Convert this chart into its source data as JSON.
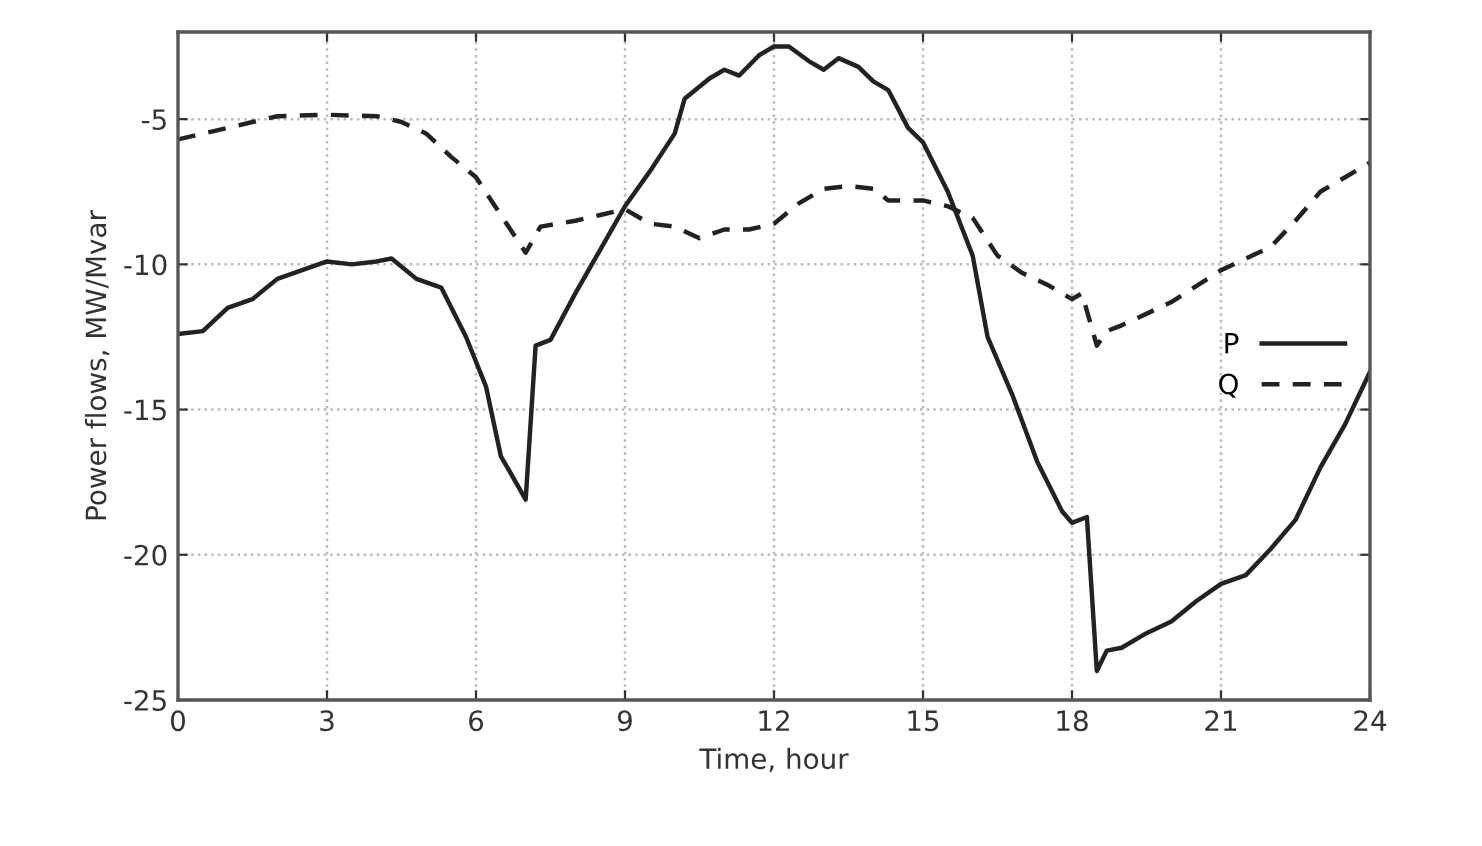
{
  "chart_data": {
    "type": "line",
    "xlabel": "Time, hour",
    "ylabel": "Power flows, MW/Mvar",
    "xlim": [
      0,
      24
    ],
    "xticks": [
      0,
      3,
      6,
      9,
      12,
      15,
      18,
      21,
      24
    ],
    "ylim": [
      -25,
      -2
    ],
    "yticks": [
      -25,
      -20,
      -15,
      -10,
      -5
    ],
    "grid": true,
    "legend": "right",
    "series": [
      {
        "name": "P",
        "color": "#222222",
        "line_style": "solid",
        "x": [
          0,
          0.5,
          1,
          1.5,
          2,
          2.5,
          3,
          3.5,
          4,
          4.3,
          4.8,
          5.3,
          5.8,
          6.2,
          6.5,
          7.0,
          7.2,
          7.5,
          8,
          8.5,
          9,
          9.5,
          10,
          10.2,
          10.7,
          11,
          11.3,
          11.7,
          12,
          12.3,
          12.7,
          13,
          13.3,
          13.7,
          14,
          14.3,
          14.7,
          15,
          15.5,
          16,
          16.3,
          16.8,
          17.3,
          17.8,
          18,
          18.3,
          18.5,
          18.7,
          19,
          19.5,
          20,
          20.5,
          21,
          21.5,
          22,
          22.5,
          23,
          23.5,
          24
        ],
        "values": [
          -12.4,
          -12.3,
          -11.5,
          -11.2,
          -10.5,
          -10.2,
          -9.9,
          -10.0,
          -9.9,
          -9.8,
          -10.5,
          -10.8,
          -12.5,
          -14.2,
          -16.6,
          -18.1,
          -12.8,
          -12.6,
          -11.0,
          -9.5,
          -8.0,
          -6.8,
          -5.5,
          -4.3,
          -3.6,
          -3.3,
          -3.5,
          -2.8,
          -2.5,
          -2.5,
          -3.0,
          -3.3,
          -2.9,
          -3.2,
          -3.7,
          -4.0,
          -5.3,
          -5.8,
          -7.5,
          -9.7,
          -12.5,
          -14.5,
          -16.8,
          -18.5,
          -18.9,
          -18.7,
          -24.0,
          -23.3,
          -23.2,
          -22.7,
          -22.3,
          -21.6,
          -21.0,
          -20.7,
          -19.8,
          -18.8,
          -17.0,
          -15.5,
          -13.7
        ]
      },
      {
        "name": "Q",
        "color": "#222222",
        "line_style": "dashed",
        "x": [
          0,
          0.5,
          1,
          1.5,
          2,
          3,
          4,
          4.5,
          5,
          5.5,
          6,
          6.5,
          7,
          7.3,
          8,
          8.5,
          9,
          9.5,
          10,
          10.5,
          11,
          11.5,
          12,
          12.5,
          13,
          13.5,
          14,
          14.3,
          15,
          15.5,
          16,
          16.5,
          17,
          17.5,
          18,
          18.2,
          18.5,
          18.7,
          19,
          20,
          21,
          22,
          22.5,
          23,
          23.5,
          24
        ],
        "values": [
          -5.7,
          -5.5,
          -5.3,
          -5.1,
          -4.9,
          -4.85,
          -4.9,
          -5.1,
          -5.5,
          -6.3,
          -7.0,
          -8.3,
          -9.6,
          -8.7,
          -8.5,
          -8.3,
          -8.1,
          -8.6,
          -8.7,
          -9.1,
          -8.8,
          -8.8,
          -8.6,
          -7.9,
          -7.4,
          -7.3,
          -7.4,
          -7.8,
          -7.8,
          -8.0,
          -8.4,
          -9.7,
          -10.3,
          -10.7,
          -11.2,
          -11.0,
          -12.8,
          -12.3,
          -12.1,
          -11.3,
          -10.2,
          -9.4,
          -8.5,
          -7.5,
          -7.0,
          -6.5
        ]
      }
    ]
  }
}
